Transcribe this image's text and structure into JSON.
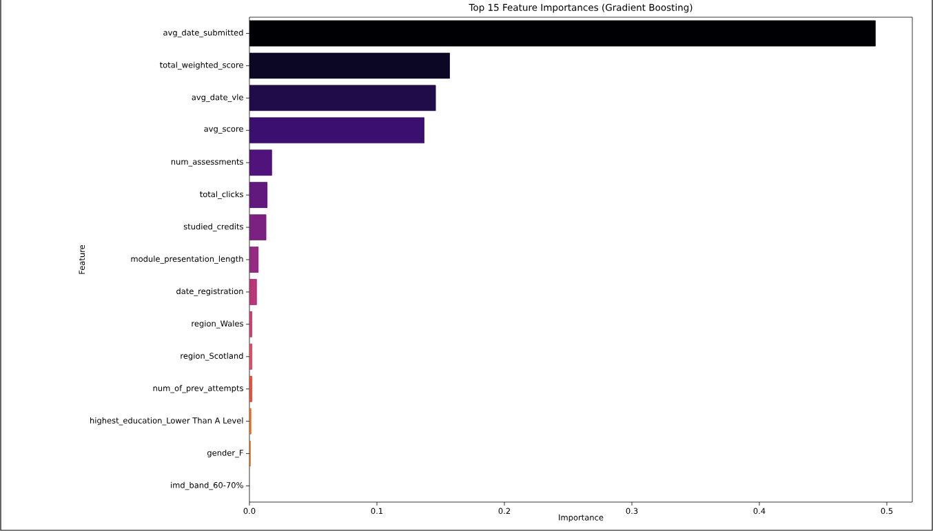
{
  "chart_data": {
    "type": "bar",
    "orientation": "horizontal",
    "title": "Top 15 Feature Importances (Gradient Boosting)",
    "xlabel": "Importance",
    "ylabel": "Feature",
    "categories": [
      "avg_date_submitted",
      "total_weighted_score",
      "avg_date_vle",
      "avg_score",
      "num_assessments",
      "total_clicks",
      "studied_credits",
      "module_presentation_length",
      "date_registration",
      "region_Wales",
      "region_Scotland",
      "num_of_prev_attempts",
      "highest_education_Lower Than A Level",
      "gender_F",
      "imd_band_60-70%"
    ],
    "values": [
      0.491,
      0.157,
      0.146,
      0.137,
      0.0175,
      0.014,
      0.013,
      0.007,
      0.0056,
      0.002,
      0.002,
      0.002,
      0.0012,
      0.0007,
      null
    ],
    "colors": [
      "#000004",
      "#0b0724",
      "#210c4a",
      "#3b0f6f",
      "#50127b",
      "#61197e",
      "#7a2181",
      "#932b80",
      "#b73779",
      "#cf4270",
      "#e34e65",
      "#e8533c",
      "#f0742a",
      "#d8702a",
      "#fcfdbf"
    ],
    "xlim": [
      0,
      0.52
    ],
    "xticks": [
      {
        "value": 0,
        "label": "0.0"
      },
      0.1,
      0.2,
      0.3,
      0.4,
      0.5
    ],
    "grid": false
  }
}
